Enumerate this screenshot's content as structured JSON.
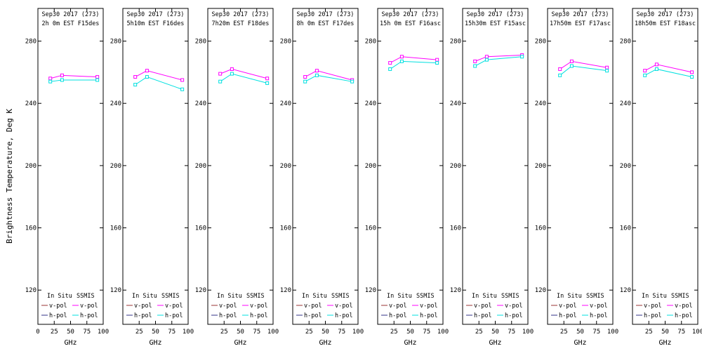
{
  "ylabel": "Brightness Temperature, Deg K",
  "xlabel": "GHz",
  "colors": {
    "ssmis_v": "#ff00ff",
    "ssmis_h": "#00e0e0",
    "insitu_v": "#993333",
    "insitu_h": "#333388",
    "axis": "#000000"
  },
  "legend": {
    "col1_header": "In Situ",
    "col2_header": "SSMIS",
    "vpol_label": "v-pol",
    "hpol_label": "h-pol"
  },
  "axis": {
    "yticks": [
      120,
      160,
      200,
      240,
      280
    ],
    "xticks": [
      25,
      50,
      75,
      100
    ],
    "xticks_first": [
      0,
      25,
      50,
      75,
      100
    ],
    "ylim": [
      98,
      301
    ],
    "xlim": [
      0,
      100
    ]
  },
  "chart_data": [
    {
      "type": "line",
      "title1": "Sep30 2017 (273)",
      "title2": "2h 0m EST F15des",
      "x": [
        19,
        37,
        91
      ],
      "series": [
        {
          "name": "SSMIS v-pol",
          "color_key": "ssmis_v",
          "values": [
            256,
            258,
            257
          ]
        },
        {
          "name": "SSMIS h-pol",
          "color_key": "ssmis_h",
          "values": [
            254,
            255,
            255
          ]
        }
      ]
    },
    {
      "type": "line",
      "title1": "Sep30 2017 (273)",
      "title2": "5h10m EST F16des",
      "x": [
        19,
        37,
        91
      ],
      "series": [
        {
          "name": "SSMIS v-pol",
          "color_key": "ssmis_v",
          "values": [
            257,
            261,
            255
          ]
        },
        {
          "name": "SSMIS h-pol",
          "color_key": "ssmis_h",
          "values": [
            252,
            257,
            249
          ]
        }
      ]
    },
    {
      "type": "line",
      "title1": "Sep30 2017 (273)",
      "title2": "7h20m EST F18des",
      "x": [
        19,
        37,
        91
      ],
      "series": [
        {
          "name": "SSMIS v-pol",
          "color_key": "ssmis_v",
          "values": [
            259,
            262,
            256
          ]
        },
        {
          "name": "SSMIS h-pol",
          "color_key": "ssmis_h",
          "values": [
            254,
            259,
            253
          ]
        }
      ]
    },
    {
      "type": "line",
      "title1": "Sep30 2017 (273)",
      "title2": "8h 0m EST F17des",
      "x": [
        19,
        37,
        91
      ],
      "series": [
        {
          "name": "SSMIS v-pol",
          "color_key": "ssmis_v",
          "values": [
            257,
            261,
            255
          ]
        },
        {
          "name": "SSMIS h-pol",
          "color_key": "ssmis_h",
          "values": [
            254,
            258,
            254
          ]
        }
      ]
    },
    {
      "type": "line",
      "title1": "Sep30 2017 (273)",
      "title2": "15h 0m EST F16asc",
      "x": [
        19,
        37,
        91
      ],
      "series": [
        {
          "name": "SSMIS v-pol",
          "color_key": "ssmis_v",
          "values": [
            266,
            270,
            268
          ]
        },
        {
          "name": "SSMIS h-pol",
          "color_key": "ssmis_h",
          "values": [
            262,
            267,
            266
          ]
        }
      ]
    },
    {
      "type": "line",
      "title1": "Sep30 2017 (273)",
      "title2": "15h30m EST F15asc",
      "x": [
        19,
        37,
        91
      ],
      "series": [
        {
          "name": "SSMIS v-pol",
          "color_key": "ssmis_v",
          "values": [
            267,
            270,
            271
          ]
        },
        {
          "name": "SSMIS h-pol",
          "color_key": "ssmis_h",
          "values": [
            264,
            268,
            270
          ]
        }
      ]
    },
    {
      "type": "line",
      "title1": "Sep30 2017 (273)",
      "title2": "17h50m EST F17asc",
      "x": [
        19,
        37,
        91
      ],
      "series": [
        {
          "name": "SSMIS v-pol",
          "color_key": "ssmis_v",
          "values": [
            262,
            267,
            263
          ]
        },
        {
          "name": "SSMIS h-pol",
          "color_key": "ssmis_h",
          "values": [
            258,
            264,
            261
          ]
        }
      ]
    },
    {
      "type": "line",
      "title1": "Sep30 2017 (273)",
      "title2": "18h50m EST F18asc",
      "x": [
        19,
        37,
        91
      ],
      "series": [
        {
          "name": "SSMIS v-pol",
          "color_key": "ssmis_v",
          "values": [
            261,
            265,
            260
          ]
        },
        {
          "name": "SSMIS h-pol",
          "color_key": "ssmis_h",
          "values": [
            258,
            262,
            257
          ]
        }
      ]
    }
  ]
}
